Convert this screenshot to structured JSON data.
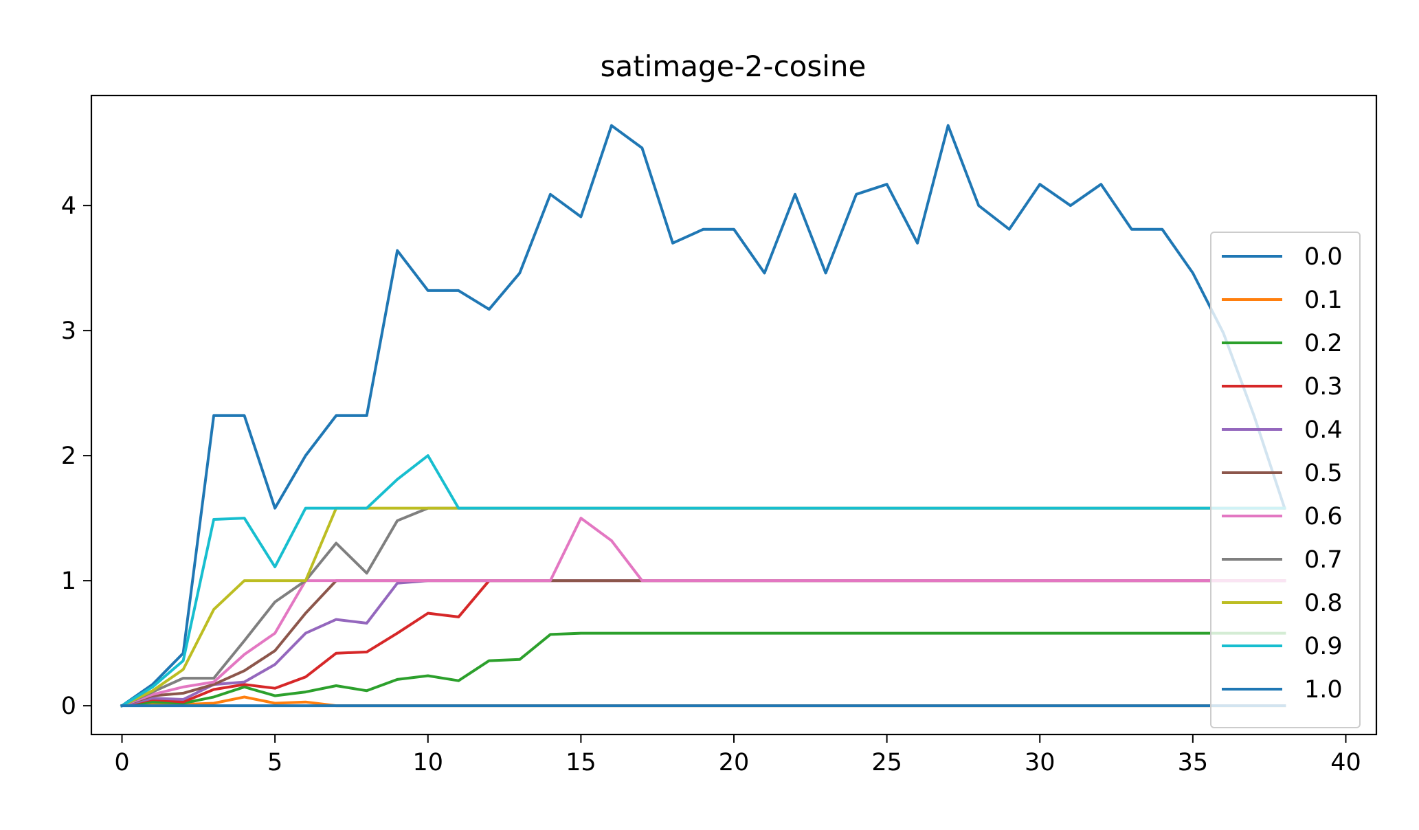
{
  "chart_data": {
    "type": "line",
    "title": "satimage-2-cosine",
    "xlabel": "",
    "ylabel": "",
    "xlim": [
      -1,
      41
    ],
    "ylim": [
      -0.23,
      4.88
    ],
    "xticks": [
      0,
      5,
      10,
      15,
      20,
      25,
      30,
      35,
      40
    ],
    "yticks": [
      0,
      1,
      2,
      3,
      4
    ],
    "grid": false,
    "legend_position": "right",
    "x": [
      0,
      1,
      2,
      3,
      4,
      5,
      6,
      7,
      8,
      9,
      10,
      11,
      12,
      13,
      14,
      15,
      16,
      17,
      18,
      19,
      20,
      21,
      22,
      23,
      24,
      25,
      26,
      27,
      28,
      29,
      30,
      31,
      32,
      33,
      34,
      35,
      36,
      37,
      38
    ],
    "series": [
      {
        "name": "0.0",
        "color": "#1f77b4",
        "values": [
          0,
          0.17,
          0.42,
          2.32,
          2.32,
          1.58,
          2.0,
          2.32,
          2.32,
          3.64,
          3.32,
          3.32,
          3.17,
          3.46,
          4.09,
          3.91,
          4.64,
          4.46,
          3.7,
          3.81,
          3.81,
          3.46,
          4.09,
          3.46,
          4.09,
          4.17,
          3.7,
          4.64,
          4.0,
          3.81,
          4.17,
          4.0,
          4.17,
          3.81,
          3.81,
          3.46,
          2.98,
          2.32,
          1.58
        ]
      },
      {
        "name": "0.1",
        "color": "#ff7f0e",
        "values": [
          0,
          0.02,
          0.01,
          0.02,
          0.07,
          0.02,
          0.03,
          0,
          0,
          0,
          0,
          0,
          0,
          0,
          0,
          0,
          0,
          0,
          0,
          0,
          0,
          0,
          0,
          0,
          0,
          0,
          0,
          0,
          0,
          0,
          0,
          0,
          0,
          0,
          0,
          0,
          0,
          0,
          0
        ]
      },
      {
        "name": "0.2",
        "color": "#2ca02c",
        "values": [
          0,
          0.03,
          0.02,
          0.07,
          0.15,
          0.08,
          0.11,
          0.16,
          0.12,
          0.21,
          0.24,
          0.2,
          0.36,
          0.37,
          0.57,
          0.58,
          0.58,
          0.58,
          0.58,
          0.58,
          0.58,
          0.58,
          0.58,
          0.58,
          0.58,
          0.58,
          0.58,
          0.58,
          0.58,
          0.58,
          0.58,
          0.58,
          0.58,
          0.58,
          0.58,
          0.58,
          0.58,
          0.58,
          0.58
        ]
      },
      {
        "name": "0.3",
        "color": "#d62728",
        "values": [
          0,
          0.05,
          0.03,
          0.13,
          0.17,
          0.14,
          0.23,
          0.42,
          0.43,
          0.58,
          0.74,
          0.71,
          1.0,
          1.0,
          1.0,
          1.0,
          1.0,
          1.0,
          1.0,
          1.0,
          1.0,
          1.0,
          1.0,
          1.0,
          1.0,
          1.0,
          1.0,
          1.0,
          1.0,
          1.0,
          1.0,
          1.0,
          1.0,
          1.0,
          1.0,
          1.0,
          1.0,
          1.0,
          1.0
        ]
      },
      {
        "name": "0.4",
        "color": "#9467bd",
        "values": [
          0,
          0.06,
          0.05,
          0.17,
          0.19,
          0.33,
          0.58,
          0.69,
          0.66,
          0.98,
          1.0,
          1.0,
          1.0,
          1.0,
          1.0,
          1.0,
          1.0,
          1.0,
          1.0,
          1.0,
          1.0,
          1.0,
          1.0,
          1.0,
          1.0,
          1.0,
          1.0,
          1.0,
          1.0,
          1.0,
          1.0,
          1.0,
          1.0,
          1.0,
          1.0,
          1.0,
          1.0,
          1.0,
          1.0
        ]
      },
      {
        "name": "0.5",
        "color": "#8c564b",
        "values": [
          0,
          0.08,
          0.1,
          0.17,
          0.28,
          0.44,
          0.74,
          1.0,
          1.0,
          1.0,
          1.0,
          1.0,
          1.0,
          1.0,
          1.0,
          1.0,
          1.0,
          1.0,
          1.0,
          1.0,
          1.0,
          1.0,
          1.0,
          1.0,
          1.0,
          1.0,
          1.0,
          1.0,
          1.0,
          1.0,
          1.0,
          1.0,
          1.0,
          1.0,
          1.0,
          1.0,
          1.0,
          1.0,
          1.0
        ]
      },
      {
        "name": "0.6",
        "color": "#e377c2",
        "values": [
          0,
          0.09,
          0.15,
          0.19,
          0.41,
          0.58,
          1.0,
          1.0,
          1.0,
          1.0,
          1.0,
          1.0,
          1.0,
          1.0,
          1.0,
          1.5,
          1.32,
          1.0,
          1.0,
          1.0,
          1.0,
          1.0,
          1.0,
          1.0,
          1.0,
          1.0,
          1.0,
          1.0,
          1.0,
          1.0,
          1.0,
          1.0,
          1.0,
          1.0,
          1.0,
          1.0,
          1.0,
          1.0,
          1.0
        ]
      },
      {
        "name": "0.7",
        "color": "#7f7f7f",
        "values": [
          0,
          0.11,
          0.22,
          0.22,
          0.52,
          0.83,
          1.0,
          1.3,
          1.06,
          1.48,
          1.58,
          1.58,
          1.58,
          1.58,
          1.58,
          1.58,
          1.58,
          1.58,
          1.58,
          1.58,
          1.58,
          1.58,
          1.58,
          1.58,
          1.58,
          1.58,
          1.58,
          1.58,
          1.58,
          1.58,
          1.58,
          1.58,
          1.58,
          1.58,
          1.58,
          1.58,
          1.58,
          1.58,
          1.58
        ]
      },
      {
        "name": "0.8",
        "color": "#bcbd22",
        "values": [
          0,
          0.12,
          0.29,
          0.77,
          1.0,
          1.0,
          1.0,
          1.58,
          1.58,
          1.58,
          1.58,
          1.58,
          1.58,
          1.58,
          1.58,
          1.58,
          1.58,
          1.58,
          1.58,
          1.58,
          1.58,
          1.58,
          1.58,
          1.58,
          1.58,
          1.58,
          1.58,
          1.58,
          1.58,
          1.58,
          1.58,
          1.58,
          1.58,
          1.58,
          1.58,
          1.58,
          1.58,
          1.58,
          1.58
        ]
      },
      {
        "name": "0.9",
        "color": "#17becf",
        "values": [
          0,
          0.15,
          0.36,
          1.49,
          1.5,
          1.11,
          1.58,
          1.58,
          1.58,
          1.81,
          2.0,
          1.58,
          1.58,
          1.58,
          1.58,
          1.58,
          1.58,
          1.58,
          1.58,
          1.58,
          1.58,
          1.58,
          1.58,
          1.58,
          1.58,
          1.58,
          1.58,
          1.58,
          1.58,
          1.58,
          1.58,
          1.58,
          1.58,
          1.58,
          1.58,
          1.58,
          1.58,
          1.58,
          1.58
        ]
      },
      {
        "name": "1.0",
        "color": "#1f77b4",
        "values": [
          0,
          0,
          0,
          0,
          0,
          0,
          0,
          0,
          0,
          0,
          0,
          0,
          0,
          0,
          0,
          0,
          0,
          0,
          0,
          0,
          0,
          0,
          0,
          0,
          0,
          0,
          0,
          0,
          0,
          0,
          0,
          0,
          0,
          0,
          0,
          0,
          0,
          0,
          0
        ]
      }
    ]
  }
}
